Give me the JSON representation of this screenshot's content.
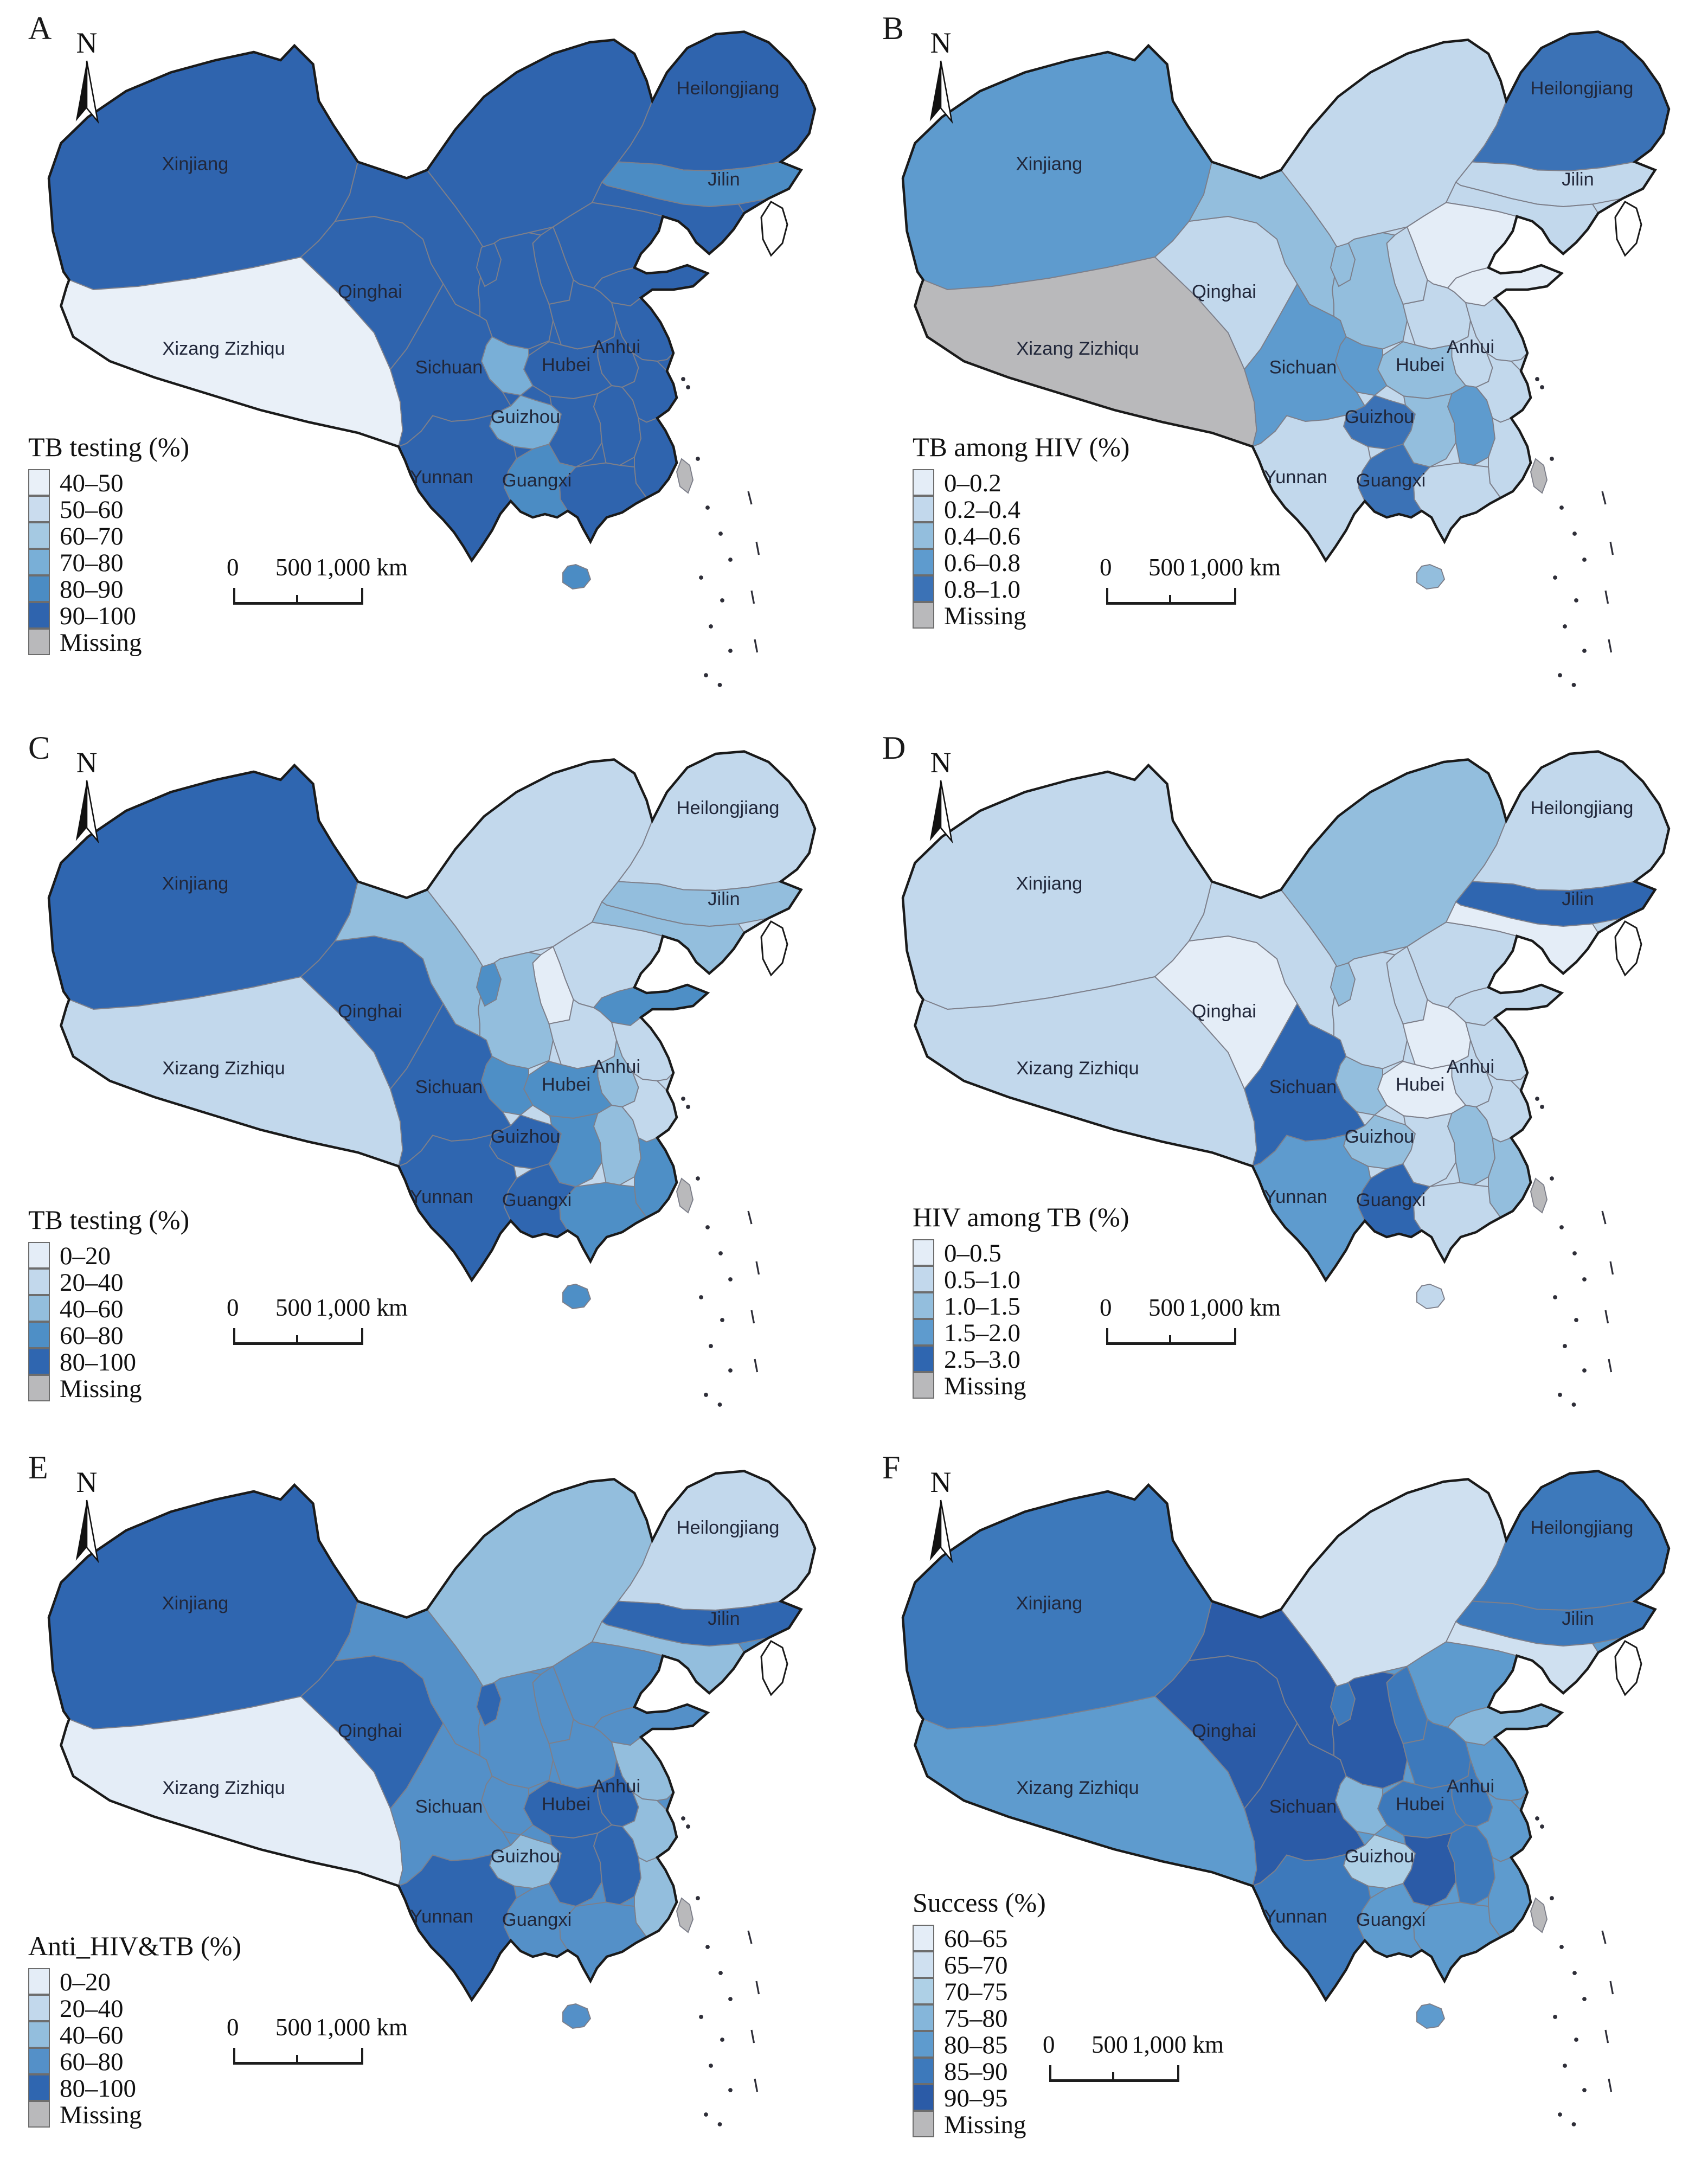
{
  "figure": {
    "description_visible_text_only": true
  },
  "north_label": "N",
  "scalebar": {
    "zero": "0",
    "mid": "500",
    "end": "1,000 km"
  },
  "province_labels": [
    {
      "id": "xinjiang",
      "text": "Xinjiang"
    },
    {
      "id": "qinghai",
      "text": "Qinghai"
    },
    {
      "id": "xizang",
      "text": "Xizang Zizhiqu"
    },
    {
      "id": "sichuan",
      "text": "Sichuan"
    },
    {
      "id": "hubei",
      "text": "Hubei"
    },
    {
      "id": "anhui",
      "text": "Anhui"
    },
    {
      "id": "guizhou",
      "text": "Guizhou"
    },
    {
      "id": "yunnan",
      "text": "Yunnan"
    },
    {
      "id": "guangxi",
      "text": "Guangxi"
    },
    {
      "id": "heilongjiang",
      "text": "Heilongjiang"
    },
    {
      "id": "jilin",
      "text": "Jilin"
    }
  ],
  "panels": [
    {
      "letter": "A",
      "legend": {
        "title": "TB testing (%)",
        "classes": [
          {
            "label": "40–50",
            "color": "#e9f0f8"
          },
          {
            "label": "50–60",
            "color": "#cadcee"
          },
          {
            "label": "60–70",
            "color": "#a5c9e2"
          },
          {
            "label": "70–80",
            "color": "#79afd7"
          },
          {
            "label": "80–90",
            "color": "#4b8cc4"
          },
          {
            "label": "90–100",
            "color": "#2f64ae"
          },
          {
            "label": "Missing",
            "color": "#b9b9bb"
          }
        ]
      },
      "base_class": 5,
      "province_classes": {
        "xinjiang": 5,
        "xizang": 0,
        "qinghai": 5,
        "gansu": 5,
        "neimenggu": 5,
        "heilongjiang": 5,
        "jilin": 4,
        "liaoning": 5,
        "hebei": 5,
        "shanxi": 5,
        "shaanxi": 5,
        "ningxia": 5,
        "shandong": 5,
        "henan": 5,
        "jiangsu": 5,
        "anhui": 5,
        "hubei": 5,
        "chongqing": 3,
        "sichuan": 5,
        "guizhou": 3,
        "yunnan": 5,
        "guangxi": 4,
        "guangdong": 5,
        "hunan": 5,
        "jiangxi": 5,
        "zhejiang": 5,
        "fujian": 5,
        "hainan": 4,
        "taiwan": "M"
      }
    },
    {
      "letter": "B",
      "legend": {
        "title": "TB among HIV (%)",
        "classes": [
          {
            "label": "0–0.2",
            "color": "#e4edf7"
          },
          {
            "label": "0.2–0.4",
            "color": "#c2d8ec"
          },
          {
            "label": "0.4–0.6",
            "color": "#93bedd"
          },
          {
            "label": "0.6–0.8",
            "color": "#5e9bce"
          },
          {
            "label": "0.8–1.0",
            "color": "#3b72b6"
          },
          {
            "label": "Missing",
            "color": "#b9b9bb"
          }
        ]
      },
      "base_class": 1,
      "province_classes": {
        "xinjiang": 3,
        "xizang": "M",
        "qinghai": 1,
        "gansu": 2,
        "neimenggu": 1,
        "heilongjiang": 4,
        "jilin": 1,
        "liaoning": 1,
        "hebei": 0,
        "shanxi": 1,
        "shaanxi": 2,
        "ningxia": 2,
        "shandong": 0,
        "henan": 1,
        "jiangsu": 1,
        "anhui": 1,
        "hubei": 2,
        "chongqing": 3,
        "sichuan": 3,
        "guizhou": 4,
        "yunnan": 1,
        "guangxi": 4,
        "guangdong": 1,
        "hunan": 2,
        "jiangxi": 3,
        "zhejiang": 1,
        "fujian": 1,
        "hainan": 2,
        "taiwan": "M"
      }
    },
    {
      "letter": "C",
      "legend": {
        "title": "TB testing (%)",
        "classes": [
          {
            "label": "0–20",
            "color": "#e4edf7"
          },
          {
            "label": "20–40",
            "color": "#c2d8ec"
          },
          {
            "label": "40–60",
            "color": "#93bedd"
          },
          {
            "label": "60–80",
            "color": "#4e8fc6"
          },
          {
            "label": "80–100",
            "color": "#2f66b0"
          },
          {
            "label": "Missing",
            "color": "#b9b9bb"
          }
        ]
      },
      "base_class": 1,
      "province_classes": {
        "xinjiang": 4,
        "xizang": 1,
        "qinghai": 4,
        "gansu": 2,
        "neimenggu": 1,
        "heilongjiang": 1,
        "jilin": 2,
        "liaoning": 2,
        "hebei": 1,
        "shanxi": 0,
        "shaanxi": 2,
        "ningxia": 3,
        "shandong": 3,
        "henan": 1,
        "jiangsu": 1,
        "anhui": 2,
        "hubei": 3,
        "chongqing": 3,
        "sichuan": 4,
        "guizhou": 4,
        "yunnan": 4,
        "guangxi": 4,
        "guangdong": 3,
        "hunan": 3,
        "jiangxi": 2,
        "zhejiang": 1,
        "fujian": 3,
        "hainan": 3,
        "taiwan": "M"
      }
    },
    {
      "letter": "D",
      "legend": {
        "title": "HIV among TB (%)",
        "classes": [
          {
            "label": "0–0.5",
            "color": "#e4edf7"
          },
          {
            "label": "0.5–1.0",
            "color": "#c2d8ec"
          },
          {
            "label": "1.0–1.5",
            "color": "#93bedd"
          },
          {
            "label": "1.5–2.0",
            "color": "#5e9bce"
          },
          {
            "label": "2.5–3.0",
            "color": "#2f66b0"
          },
          {
            "label": "Missing",
            "color": "#b9b9bb"
          }
        ]
      },
      "base_class": 1,
      "province_classes": {
        "xinjiang": 1,
        "xizang": 1,
        "qinghai": 0,
        "gansu": 1,
        "neimenggu": 2,
        "heilongjiang": 1,
        "jilin": 4,
        "liaoning": 0,
        "hebei": 1,
        "shanxi": 1,
        "shaanxi": 1,
        "ningxia": 2,
        "shandong": 1,
        "henan": 0,
        "jiangsu": 1,
        "anhui": 1,
        "hubei": 0,
        "chongqing": 2,
        "sichuan": 4,
        "guizhou": 2,
        "yunnan": 3,
        "guangxi": 4,
        "guangdong": 1,
        "hunan": 1,
        "jiangxi": 2,
        "zhejiang": 1,
        "fujian": 2,
        "hainan": 1,
        "taiwan": "M"
      }
    },
    {
      "letter": "E",
      "legend": {
        "title": "Anti_HIV&TB (%)",
        "classes": [
          {
            "label": "0–20",
            "color": "#e4edf7"
          },
          {
            "label": "20–40",
            "color": "#c2d8ec"
          },
          {
            "label": "40–60",
            "color": "#93bedd"
          },
          {
            "label": "60–80",
            "color": "#5490c8"
          },
          {
            "label": "80–100",
            "color": "#2f66b0"
          },
          {
            "label": "Missing",
            "color": "#b9b9bb"
          }
        ]
      },
      "base_class": 3,
      "province_classes": {
        "xinjiang": 4,
        "xizang": 0,
        "qinghai": 4,
        "gansu": 3,
        "neimenggu": 2,
        "heilongjiang": 1,
        "jilin": 4,
        "liaoning": 2,
        "hebei": 3,
        "shanxi": 3,
        "shaanxi": 3,
        "ningxia": 4,
        "shandong": 3,
        "henan": 3,
        "jiangsu": 2,
        "anhui": 4,
        "hubei": 4,
        "chongqing": 3,
        "sichuan": 3,
        "guizhou": 2,
        "yunnan": 4,
        "guangxi": 3,
        "guangdong": 3,
        "hunan": 4,
        "jiangxi": 4,
        "zhejiang": 2,
        "fujian": 2,
        "hainan": 3,
        "taiwan": "M"
      }
    },
    {
      "letter": "F",
      "legend": {
        "title": "Success (%)",
        "classes": [
          {
            "label": "60–65",
            "color": "#e4edf7"
          },
          {
            "label": "65–70",
            "color": "#cfe0f0"
          },
          {
            "label": "70–75",
            "color": "#aed0e6"
          },
          {
            "label": "75–80",
            "color": "#85b6da"
          },
          {
            "label": "80–85",
            "color": "#5e9bce"
          },
          {
            "label": "85–90",
            "color": "#3d79bb"
          },
          {
            "label": "90–95",
            "color": "#2b5ba7"
          },
          {
            "label": "Missing",
            "color": "#b9b9bb"
          }
        ]
      },
      "base_class": 4,
      "province_classes": {
        "xinjiang": 5,
        "xizang": 4,
        "qinghai": 6,
        "gansu": 6,
        "neimenggu": 1,
        "heilongjiang": 5,
        "jilin": 5,
        "liaoning": 1,
        "hebei": 4,
        "shanxi": 5,
        "shaanxi": 6,
        "ningxia": 5,
        "shandong": 3,
        "henan": 5,
        "jiangsu": 4,
        "anhui": 5,
        "hubei": 5,
        "chongqing": 3,
        "sichuan": 6,
        "guizhou": 2,
        "yunnan": 5,
        "guangxi": 4,
        "guangdong": 4,
        "hunan": 6,
        "jiangxi": 5,
        "zhejiang": 4,
        "fujian": 4,
        "hainan": 4,
        "taiwan": "M"
      }
    }
  ]
}
